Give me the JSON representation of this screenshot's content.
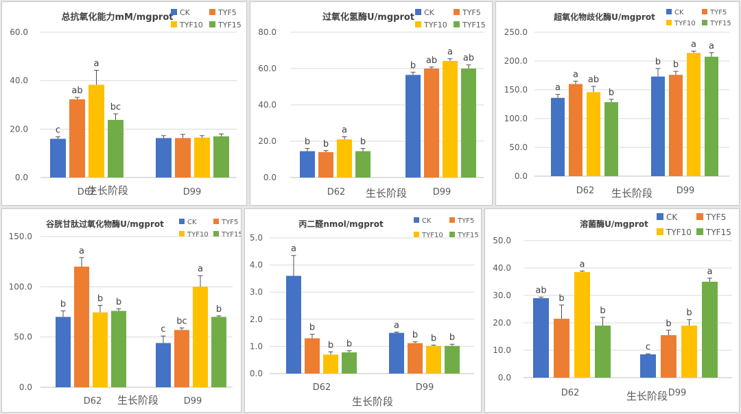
{
  "colors": {
    "CK": "#4472c4",
    "TYF5": "#ed7d31",
    "TYF10": "#ffc000",
    "TYF15": "#70ad47",
    "axis": "#595959",
    "grid": "#d9d9d9"
  },
  "chart_data": [
    {
      "type": "bar",
      "title": "总抗氧化能力mM/mgprot",
      "xlabel": "生长阶段",
      "categories": [
        "D62",
        "D99"
      ],
      "ylim": [
        0,
        60
      ],
      "yticks": [
        "0.0",
        "20.0",
        "40.0",
        "60.0"
      ],
      "legend_entries": [
        "CK",
        "TYF5",
        "TYF10",
        "TYF15"
      ],
      "series": [
        {
          "name": "CK",
          "values": [
            16,
            16.3
          ],
          "errors": [
            0.8,
            1.0
          ],
          "letters": [
            "c",
            ""
          ]
        },
        {
          "name": "TYF5",
          "values": [
            32.3,
            16.3
          ],
          "errors": [
            0.8,
            1.5
          ],
          "letters": [
            "ab",
            ""
          ]
        },
        {
          "name": "TYF10",
          "values": [
            38.3,
            16.5
          ],
          "errors": [
            6,
            0.8
          ],
          "letters": [
            "a",
            ""
          ]
        },
        {
          "name": "TYF15",
          "values": [
            23.8,
            17
          ],
          "errors": [
            2.5,
            1.0
          ],
          "letters": [
            "bc",
            ""
          ]
        }
      ]
    },
    {
      "type": "bar",
      "title": "过氧化氢酶U/mgprot",
      "xlabel": "生长阶段",
      "categories": [
        "D62",
        "D99"
      ],
      "ylim": [
        0,
        80
      ],
      "yticks": [
        "0.0",
        "20.0",
        "40.0",
        "60.0",
        "80.0"
      ],
      "legend_entries": [
        "CK",
        "TYF5",
        "TYF10",
        "TYF15"
      ],
      "series": [
        {
          "name": "CK",
          "values": [
            14.5,
            56.5
          ],
          "errors": [
            1.5,
            1.5
          ],
          "letters": [
            "b",
            "b"
          ]
        },
        {
          "name": "TYF5",
          "values": [
            14,
            60
          ],
          "errors": [
            0.8,
            0.8
          ],
          "letters": [
            "b",
            "ab"
          ]
        },
        {
          "name": "TYF10",
          "values": [
            21,
            64.2
          ],
          "errors": [
            1.5,
            1.2
          ],
          "letters": [
            "a",
            "a"
          ]
        },
        {
          "name": "TYF15",
          "values": [
            14.5,
            60
          ],
          "errors": [
            1.5,
            2
          ],
          "letters": [
            "b",
            "ab"
          ]
        }
      ]
    },
    {
      "type": "bar",
      "title": "超氧化物歧化酶U/mgprot",
      "xlabel": "生长阶段",
      "categories": [
        "D62",
        "D99"
      ],
      "ylim": [
        0,
        250
      ],
      "yticks": [
        "0.0",
        "50.0",
        "100.0",
        "150.0",
        "200.0",
        "250.0"
      ],
      "legend_entries": [
        "CK",
        "TYF5",
        "TYF10",
        "TYF15"
      ],
      "series": [
        {
          "name": "CK",
          "values": [
            136,
            173
          ],
          "errors": [
            6,
            14
          ],
          "letters": [
            "a",
            "b"
          ]
        },
        {
          "name": "TYF5",
          "values": [
            160,
            176
          ],
          "errors": [
            5,
            6
          ],
          "letters": [
            "a",
            "b"
          ]
        },
        {
          "name": "TYF10",
          "values": [
            146,
            214
          ],
          "errors": [
            10,
            3
          ],
          "letters": [
            "ab",
            "a"
          ]
        },
        {
          "name": "TYF15",
          "values": [
            128.5,
            207.5
          ],
          "errors": [
            5,
            7
          ],
          "letters": [
            "b",
            "a"
          ]
        }
      ]
    },
    {
      "type": "bar",
      "title": "谷胱甘肽过氧化物酶U/mgprot",
      "xlabel": "生长阶段",
      "categories": [
        "D62",
        "D99"
      ],
      "ylim": [
        0,
        150
      ],
      "yticks": [
        "0.0",
        "50.0",
        "100.0",
        "150.0"
      ],
      "legend_entries": [
        "CK",
        "TYF5",
        "TYF10",
        "TYF15"
      ],
      "series": [
        {
          "name": "CK",
          "values": [
            70,
            44
          ],
          "errors": [
            6,
            7
          ],
          "letters": [
            "b",
            "c"
          ]
        },
        {
          "name": "TYF5",
          "values": [
            120,
            57
          ],
          "errors": [
            9,
            2
          ],
          "letters": [
            "a",
            "bc"
          ]
        },
        {
          "name": "TYF10",
          "values": [
            74.5,
            100
          ],
          "errors": [
            7,
            11
          ],
          "letters": [
            "b",
            "a"
          ]
        },
        {
          "name": "TYF15",
          "values": [
            76,
            70
          ],
          "errors": [
            2,
            1
          ],
          "letters": [
            "b",
            "b"
          ]
        }
      ]
    },
    {
      "type": "bar",
      "title": "丙二醛nmol/mgprot",
      "xlabel": "生长阶段",
      "categories": [
        "D62",
        "D99"
      ],
      "ylim": [
        0,
        5
      ],
      "yticks": [
        "0.0",
        "1.0",
        "2.0",
        "3.0",
        "4.0",
        "5.0"
      ],
      "legend_entries": [
        "CK",
        "TYF5",
        "TYF10",
        "TYF15"
      ],
      "series": [
        {
          "name": "CK",
          "values": [
            3.6,
            1.5
          ],
          "errors": [
            0.75,
            0.03
          ],
          "letters": [
            "a",
            "a"
          ]
        },
        {
          "name": "TYF5",
          "values": [
            1.3,
            1.12
          ],
          "errors": [
            0.15,
            0.05
          ],
          "letters": [
            "b",
            "b"
          ]
        },
        {
          "name": "TYF10",
          "values": [
            0.7,
            1.02
          ],
          "errors": [
            0.1,
            0.03
          ],
          "letters": [
            "b",
            "b"
          ]
        },
        {
          "name": "TYF15",
          "values": [
            0.78,
            1.02
          ],
          "errors": [
            0.06,
            0.06
          ],
          "letters": [
            "b",
            "b"
          ]
        }
      ]
    },
    {
      "type": "bar",
      "title": "溶菌酶U/mgprot",
      "xlabel": "生长阶段",
      "categories": [
        "D62",
        "D99"
      ],
      "ylim": [
        0,
        50
      ],
      "yticks": [
        "0.0",
        "10.0",
        "20.0",
        "30.0",
        "40.0",
        "50.0"
      ],
      "legend_entries": [
        "CK",
        "TYF5",
        "TYF10",
        "TYF15"
      ],
      "series": [
        {
          "name": "CK",
          "values": [
            29,
            8.5
          ],
          "errors": [
            0.4,
            0.2
          ],
          "letters": [
            "ab",
            "c"
          ]
        },
        {
          "name": "TYF5",
          "values": [
            21.5,
            15.5
          ],
          "errors": [
            5,
            1.8
          ],
          "letters": [
            "b",
            "b"
          ]
        },
        {
          "name": "TYF10",
          "values": [
            38.5,
            19
          ],
          "errors": [
            0.4,
            2.2
          ],
          "letters": [
            "a",
            "b"
          ]
        },
        {
          "name": "TYF15",
          "values": [
            19,
            35
          ],
          "errors": [
            3,
            1.3
          ],
          "letters": [
            "b",
            "a"
          ]
        }
      ]
    }
  ]
}
